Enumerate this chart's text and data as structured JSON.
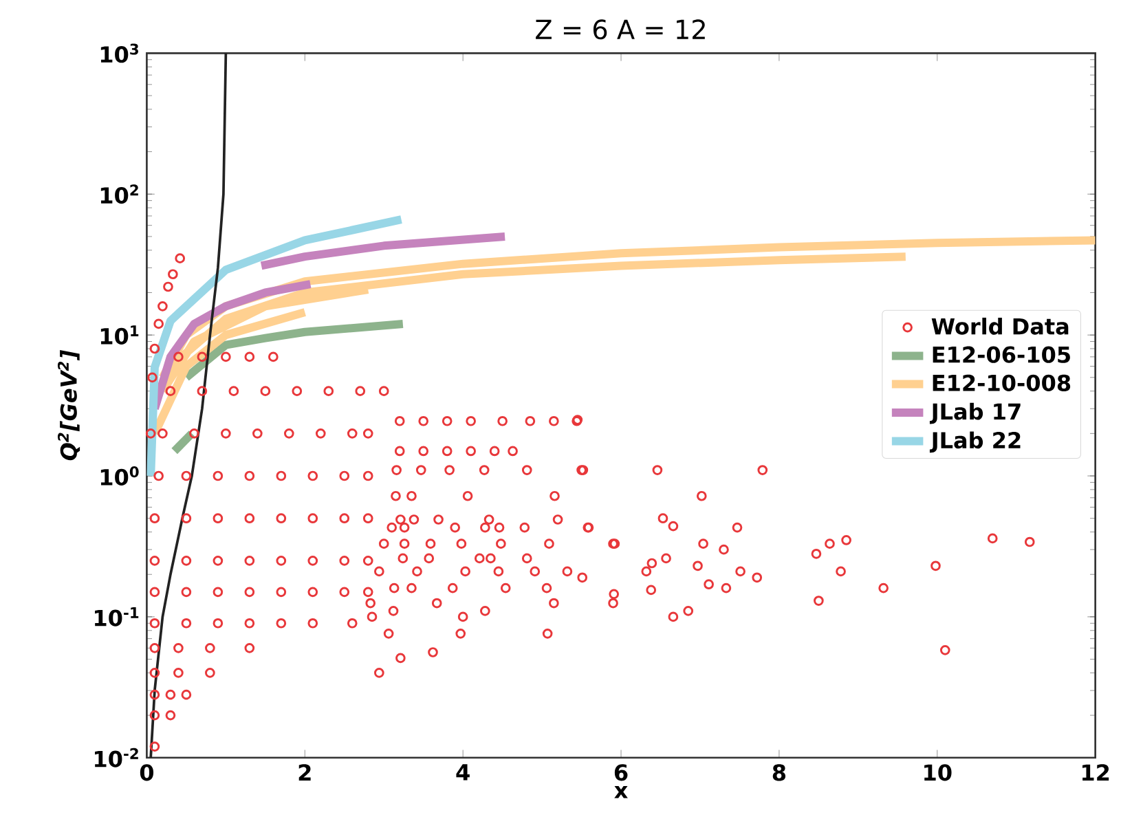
{
  "chart_data": {
    "type": "scatter",
    "title": "Z = 6 A = 12",
    "xlabel": "x",
    "ylabel": "Q$^{2}$[GeV$^{2}$]",
    "log": "y",
    "xlim": [
      0,
      12
    ],
    "ylim": [
      0.01,
      1000
    ],
    "xticks": [
      0,
      2,
      4,
      6,
      8,
      10,
      12
    ],
    "yticks": [
      {
        "value": 0.01,
        "label": "10$^{-2}$"
      },
      {
        "value": 0.1,
        "label": "10$^{-1}$"
      },
      {
        "value": 1,
        "label": "10$^{0}$"
      },
      {
        "value": 10,
        "label": "10$^{1}$"
      },
      {
        "value": 100,
        "label": "10$^{2}$"
      },
      {
        "value": 1000,
        "label": "10$^{3}$"
      }
    ],
    "legend": "right",
    "series": [
      {
        "name": "World Data",
        "marker": "circle",
        "color": "#e8373a",
        "x": [
          0.4,
          0.7,
          1.0,
          1.3,
          1.6,
          0.3,
          0.7,
          1.1,
          1.5,
          1.9,
          2.3,
          2.7,
          3.0,
          0.2,
          0.6,
          1.0,
          1.4,
          1.8,
          2.2,
          2.6,
          2.8,
          0.15,
          0.5,
          0.9,
          1.3,
          1.7,
          2.1,
          2.5,
          2.8,
          0.1,
          0.5,
          0.9,
          1.3,
          1.7,
          2.1,
          2.5,
          2.8,
          0.1,
          0.5,
          0.9,
          1.3,
          1.7,
          2.1,
          2.5,
          2.8,
          0.1,
          0.5,
          0.9,
          1.3,
          1.7,
          2.1,
          2.5,
          2.8,
          0.1,
          0.5,
          0.9,
          1.3,
          1.7,
          2.1,
          2.6,
          0.1,
          0.4,
          0.8,
          1.3,
          0.1,
          0.4,
          0.8,
          0.1,
          0.3,
          0.5,
          0.1,
          0.3,
          0.1,
          0.05,
          0.07,
          0.1,
          0.15,
          0.2,
          0.27,
          0.33,
          0.42,
          3.2,
          3.5,
          3.8,
          4.1,
          4.5,
          4.85,
          5.15,
          5.44,
          3.2,
          3.5,
          3.8,
          4.1,
          4.4,
          4.63,
          3.16,
          3.47,
          3.83,
          4.27,
          4.81,
          5.5,
          3.15,
          3.35,
          4.06,
          5.16,
          3.21,
          3.38,
          3.69,
          4.33,
          5.2,
          3.1,
          3.26,
          3.9,
          4.28,
          4.46,
          4.78,
          5.58,
          3.0,
          3.26,
          3.59,
          3.98,
          4.48,
          5.09,
          5.9,
          3.24,
          3.57,
          4.21,
          4.35,
          4.81,
          2.94,
          3.42,
          4.03,
          4.45,
          4.91,
          5.32,
          3.13,
          3.35,
          3.87,
          4.54,
          5.06,
          2.83,
          3.67,
          5.15,
          5.9,
          3.12,
          4.28,
          2.85,
          4.0,
          3.06,
          3.97,
          5.07,
          3.62,
          3.21,
          2.94,
          5.45,
          5.52,
          6.46,
          7.79,
          7.02,
          5.59,
          6.53,
          6.66,
          5.92,
          7.04,
          7.47,
          7.3,
          6.39,
          6.57,
          6.32,
          6.97,
          7.51,
          7.72,
          7.11,
          7.33,
          6.38,
          5.91,
          5.51,
          6.85,
          6.66,
          8.47,
          8.64,
          8.85,
          8.78,
          8.5,
          9.32,
          9.98,
          10.7,
          11.17,
          10.1
        ],
        "values": [
          7,
          7,
          7,
          7,
          7,
          4,
          4,
          4,
          4,
          4,
          4,
          4,
          4,
          2,
          2,
          2,
          2,
          2,
          2,
          2,
          2,
          1,
          1,
          1,
          1,
          1,
          1,
          1,
          1,
          0.5,
          0.5,
          0.5,
          0.5,
          0.5,
          0.5,
          0.5,
          0.5,
          0.25,
          0.25,
          0.25,
          0.25,
          0.25,
          0.25,
          0.25,
          0.25,
          0.15,
          0.15,
          0.15,
          0.15,
          0.15,
          0.15,
          0.15,
          0.15,
          0.09,
          0.09,
          0.09,
          0.09,
          0.09,
          0.09,
          0.09,
          0.06,
          0.06,
          0.06,
          0.06,
          0.04,
          0.04,
          0.04,
          0.028,
          0.028,
          0.028,
          0.02,
          0.02,
          0.012,
          2,
          5,
          8,
          12,
          16,
          22,
          27,
          35,
          2.45,
          2.45,
          2.45,
          2.45,
          2.45,
          2.45,
          2.45,
          2.45,
          1.5,
          1.5,
          1.5,
          1.5,
          1.5,
          1.5,
          1.1,
          1.1,
          1.1,
          1.1,
          1.1,
          1.1,
          0.72,
          0.72,
          0.72,
          0.72,
          0.49,
          0.49,
          0.49,
          0.49,
          0.49,
          0.43,
          0.43,
          0.43,
          0.43,
          0.43,
          0.43,
          0.43,
          0.33,
          0.33,
          0.33,
          0.33,
          0.33,
          0.33,
          0.33,
          0.26,
          0.26,
          0.26,
          0.26,
          0.26,
          0.21,
          0.21,
          0.21,
          0.21,
          0.21,
          0.21,
          0.16,
          0.16,
          0.16,
          0.16,
          0.16,
          0.125,
          0.125,
          0.125,
          0.125,
          0.11,
          0.11,
          0.1,
          0.1,
          0.076,
          0.076,
          0.076,
          0.056,
          0.051,
          0.04,
          2.5,
          1.1,
          1.1,
          1.1,
          0.72,
          0.43,
          0.5,
          0.44,
          0.33,
          0.33,
          0.43,
          0.3,
          0.24,
          0.26,
          0.21,
          0.23,
          0.21,
          0.19,
          0.17,
          0.16,
          0.155,
          0.145,
          0.19,
          0.11,
          0.1,
          0.28,
          0.33,
          0.35,
          0.21,
          0.13,
          0.16,
          0.23,
          0.36,
          0.34,
          0.058
        ]
      },
      {
        "name": "E12-06-105",
        "type": "line",
        "color": "#8db38c",
        "x": [
          0.5,
          1,
          1.5,
          2,
          3.24,
          null,
          0.35,
          0.57
        ],
        "values": [
          5,
          8.5,
          9.5,
          10.5,
          12,
          null,
          1.5,
          2.0
        ]
      },
      {
        "name": "E12-10-008",
        "type": "line",
        "color": "#ffd090",
        "x": [
          0.2,
          0.5,
          1,
          2,
          4,
          6,
          8,
          10,
          12,
          null,
          0.3,
          1,
          2,
          4,
          6,
          8,
          9.6,
          null,
          0.2,
          0.6,
          1.5,
          2.8,
          null,
          0.1,
          0.5,
          1,
          2
        ],
        "values": [
          5,
          10,
          16,
          24,
          32,
          38,
          42,
          45,
          47,
          null,
          6,
          13,
          20,
          27,
          31,
          34,
          36,
          null,
          4,
          9,
          16,
          21,
          null,
          2,
          6,
          10,
          14.5
        ]
      },
      {
        "name": "JLab 17",
        "type": "line",
        "color": "#c583bd",
        "x": [
          0.1,
          0.3,
          0.6,
          1,
          1.5,
          2.07,
          null,
          1.45,
          2,
          3,
          4.53
        ],
        "values": [
          3,
          7,
          12,
          16,
          20,
          23,
          null,
          31,
          36,
          43,
          50
        ]
      },
      {
        "name": "JLab 22",
        "type": "line",
        "color": "#98d6e6",
        "x": [
          0.05,
          0.1,
          0.3,
          1,
          2,
          3.22
        ],
        "values": [
          1,
          5.9,
          12.6,
          29,
          47,
          66
        ]
      },
      {
        "type": "line",
        "color": "#222222",
        "x": [
          0.05,
          0.1,
          0.2,
          0.3,
          0.45,
          0.57,
          0.7,
          0.8,
          0.9,
          0.97,
          1.0
        ],
        "values": [
          0.01,
          0.03,
          0.1,
          0.2,
          0.5,
          1,
          3,
          10,
          30,
          100,
          1000
        ]
      }
    ]
  }
}
